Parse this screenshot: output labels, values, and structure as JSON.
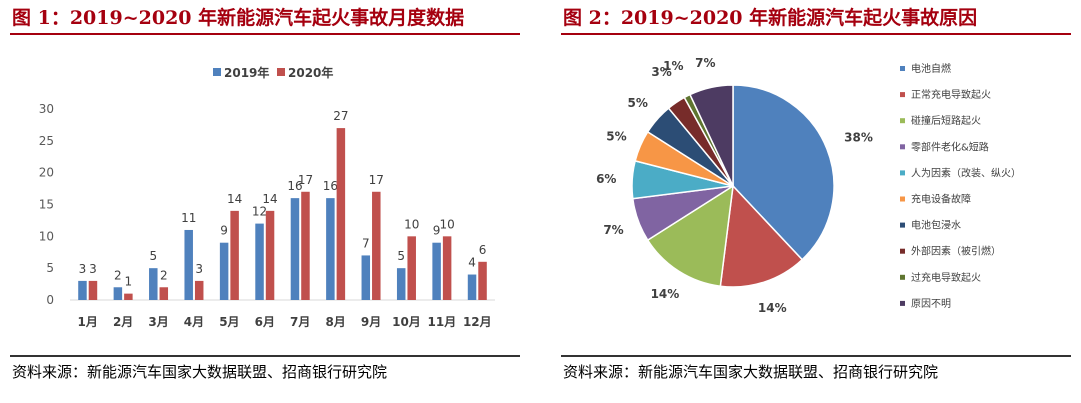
{
  "left": {
    "title": "图 1：2019~2020 年新能源汽车起火事故月度数据",
    "source": "资料来源：新能源汽车国家大数据联盟、招商银行研究院"
  },
  "right": {
    "title": "图 2：2019~2020 年新能源汽车起火事故原因",
    "source": "资料来源：新能源汽车国家大数据联盟、招商银行研究院"
  },
  "chart_data": [
    {
      "type": "bar",
      "title": "",
      "xlabel": "",
      "ylabel": "",
      "categories": [
        "1月",
        "2月",
        "3月",
        "4月",
        "5月",
        "6月",
        "7月",
        "8月",
        "9月",
        "10月",
        "11月",
        "12月"
      ],
      "series": [
        {
          "name": "2019年",
          "color": "#4f81bd",
          "values": [
            3,
            2,
            5,
            11,
            9,
            12,
            16,
            16,
            7,
            5,
            9,
            4
          ]
        },
        {
          "name": "2020年",
          "color": "#c0504d",
          "values": [
            3,
            1,
            2,
            3,
            14,
            14,
            17,
            27,
            17,
            10,
            10,
            6
          ]
        }
      ],
      "ylim": [
        0,
        30
      ],
      "yticks": [
        0,
        5,
        10,
        15,
        20,
        25,
        30
      ],
      "grid": false,
      "legend": "top"
    },
    {
      "type": "pie",
      "title": "",
      "slices": [
        {
          "label": "电池自燃",
          "value": 38,
          "display": "38%",
          "color": "#4f81bd"
        },
        {
          "label": "正常充电导致起火",
          "value": 14,
          "display": "14%",
          "color": "#c0504d"
        },
        {
          "label": "碰撞后短路起火",
          "value": 14,
          "display": "14%",
          "color": "#9bbb59"
        },
        {
          "label": "零部件老化&短路",
          "value": 7,
          "display": "7%",
          "color": "#8064a2"
        },
        {
          "label": "人为因素（改装、纵火）",
          "value": 6,
          "display": "6%",
          "color": "#4bacc6"
        },
        {
          "label": "充电设备故障",
          "value": 5,
          "display": "5%",
          "color": "#f79646"
        },
        {
          "label": "电池包浸水",
          "value": 5,
          "display": "5%",
          "color": "#2c4d75"
        },
        {
          "label": "外部因素（被引燃）",
          "value": 3,
          "display": "3%",
          "color": "#772c2a"
        },
        {
          "label": "过充电导致起火",
          "value": 1,
          "display": "1%",
          "color": "#5f7530"
        },
        {
          "label": "原因不明",
          "value": 7,
          "display": "7%",
          "color": "#4d3b62"
        }
      ],
      "legend": "right"
    }
  ]
}
